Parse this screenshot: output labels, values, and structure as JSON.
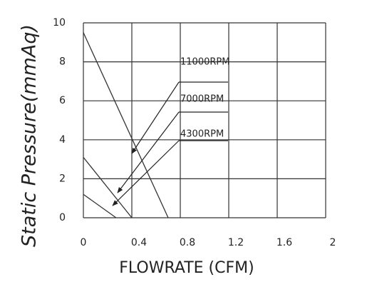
{
  "chart_data": {
    "type": "line",
    "xlabel": "FLOWRATE (CFM)",
    "ylabel": "Static Pressure(mmAq)",
    "series": [
      {
        "name": "11000RPM",
        "color": "#333333",
        "x": [
          0,
          0.7
        ],
        "values": [
          9.5,
          0
        ]
      },
      {
        "name": "7000RPM",
        "color": "#333333",
        "x": [
          0,
          0.4
        ],
        "values": [
          3.1,
          0
        ]
      },
      {
        "name": "4300RPM",
        "color": "#333333",
        "x": [
          0,
          0.27
        ],
        "values": [
          1.2,
          0
        ]
      }
    ],
    "xlim": [
      0,
      2
    ],
    "xticks": [
      0,
      0.4,
      0.8,
      1.2,
      1.6,
      2
    ],
    "ylim": [
      0,
      10
    ],
    "yticks": [
      0,
      2,
      4,
      6,
      8,
      10
    ],
    "grid": true
  }
}
